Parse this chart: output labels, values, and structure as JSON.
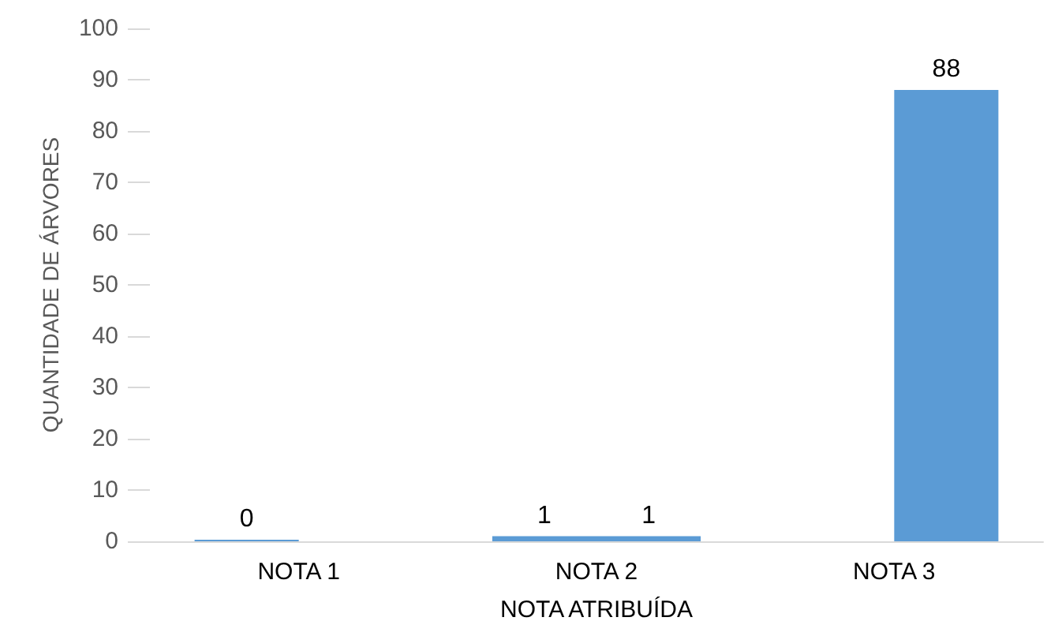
{
  "chart_data": {
    "type": "bar",
    "xlabel": "NOTA ATRIBUÍDA",
    "ylabel": "QUANTIDADE DE ÁRVORES",
    "categories": [
      "NOTA 1",
      "NOTA 2",
      "NOTA 3"
    ],
    "series": [
      {
        "color": "#5b9bd5",
        "values": [
          0,
          1,
          null
        ]
      },
      {
        "color": "#5b9bd5",
        "values": [
          null,
          1,
          88
        ]
      }
    ],
    "ylim": [
      0,
      100
    ],
    "yticks": [
      0,
      10,
      20,
      30,
      40,
      50,
      60,
      70,
      80,
      90,
      100
    ],
    "grid": false,
    "data_labels": true
  }
}
